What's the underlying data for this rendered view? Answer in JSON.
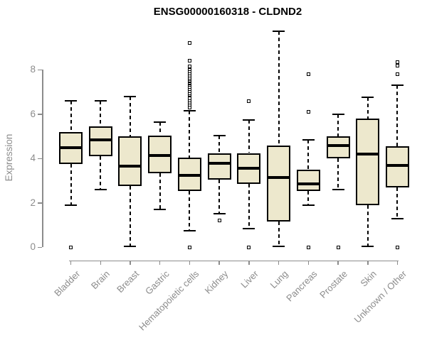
{
  "title": "ENSG00000160318 - CLDND2",
  "chart_data": {
    "type": "boxplot",
    "title": "ENSG00000160318 - CLDND2",
    "xlabel": "",
    "ylabel": "Expression",
    "yticks": [
      0,
      2,
      4,
      6,
      8
    ],
    "ylim": [
      0,
      9.9
    ],
    "grid": "off",
    "legend": "none",
    "categories": [
      "Bladder",
      "Brain",
      "Breast",
      "Gastric",
      "Hematopoietic cells",
      "Kidney",
      "Liver",
      "Lung",
      "Pancreas",
      "Prostate",
      "Skin",
      "Unknown / Other"
    ],
    "boxes": [
      {
        "category": "Bladder",
        "whisker_low": 1.9,
        "q1": 3.75,
        "median": 4.5,
        "q3": 5.2,
        "whisker_high": 6.6,
        "outliers": [
          0
        ]
      },
      {
        "category": "Brain",
        "whisker_low": 2.6,
        "q1": 4.1,
        "median": 4.85,
        "q3": 5.45,
        "whisker_high": 6.6,
        "outliers": []
      },
      {
        "category": "Breast",
        "whisker_low": 0.05,
        "q1": 2.75,
        "median": 3.65,
        "q3": 5.0,
        "whisker_high": 6.8,
        "outliers": []
      },
      {
        "category": "Gastric",
        "whisker_low": 1.7,
        "q1": 3.35,
        "median": 4.15,
        "q3": 5.05,
        "whisker_high": 5.65,
        "outliers": []
      },
      {
        "category": "Hematopoietic cells",
        "whisker_low": 0.75,
        "q1": 2.55,
        "median": 3.25,
        "q3": 4.05,
        "whisker_high": 6.15,
        "outliers": [
          9.2,
          8.4,
          8.15,
          8.0,
          7.9,
          7.8,
          7.7,
          7.6,
          7.5,
          7.45,
          7.4,
          7.35,
          7.3,
          7.25,
          7.2,
          7.1,
          7.0,
          6.9,
          6.8,
          6.75,
          6.7,
          6.6,
          6.5,
          6.4,
          6.3,
          0
        ]
      },
      {
        "category": "Kidney",
        "whisker_low": 1.5,
        "q1": 3.05,
        "median": 3.8,
        "q3": 4.25,
        "whisker_high": 5.05,
        "outliers": [
          1.2
        ]
      },
      {
        "category": "Liver",
        "whisker_low": 0.85,
        "q1": 2.85,
        "median": 3.55,
        "q3": 4.25,
        "whisker_high": 5.75,
        "outliers": [
          6.6,
          0
        ]
      },
      {
        "category": "Lung",
        "whisker_low": 0.05,
        "q1": 1.15,
        "median": 3.15,
        "q3": 4.6,
        "whisker_high": 9.75,
        "outliers": []
      },
      {
        "category": "Pancreas",
        "whisker_low": 1.9,
        "q1": 2.55,
        "median": 2.85,
        "q3": 3.5,
        "whisker_high": 4.85,
        "outliers": [
          7.8,
          6.1,
          0
        ]
      },
      {
        "category": "Prostate",
        "whisker_low": 2.6,
        "q1": 4.0,
        "median": 4.6,
        "q3": 5.0,
        "whisker_high": 6.0,
        "outliers": [
          0
        ]
      },
      {
        "category": "Skin",
        "whisker_low": 0.05,
        "q1": 1.9,
        "median": 4.2,
        "q3": 5.8,
        "whisker_high": 6.75,
        "outliers": []
      },
      {
        "category": "Unknown / Other",
        "whisker_low": 1.3,
        "q1": 2.7,
        "median": 3.7,
        "q3": 4.55,
        "whisker_high": 7.3,
        "outliers": [
          8.35,
          8.2,
          7.8,
          0
        ]
      }
    ],
    "style": {
      "box_fill": "#EDE8CD",
      "box_border": "#000000",
      "median_color": "#000000",
      "whisker_style": "dashed",
      "outlier_marker": "open-square",
      "axis_color": "#8c8c8c",
      "label_color": "#8c8c8c",
      "title_color": "#000000",
      "background": "#ffffff"
    }
  }
}
